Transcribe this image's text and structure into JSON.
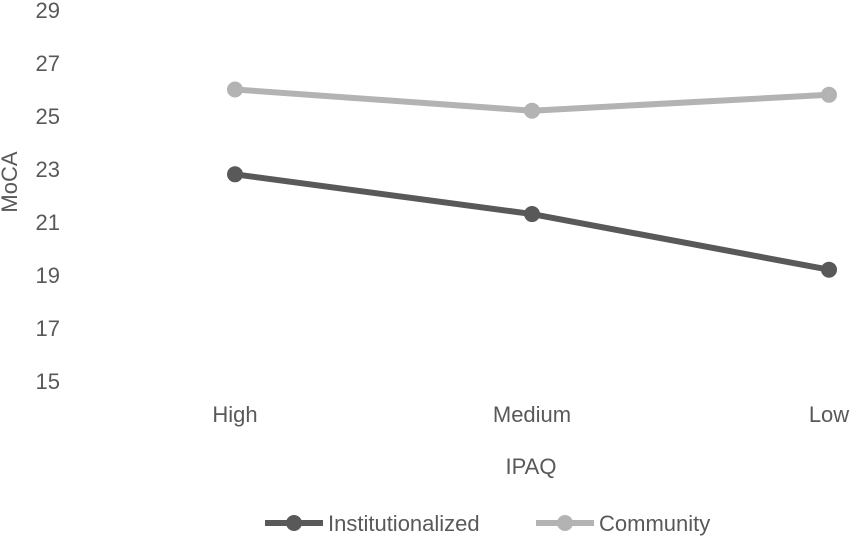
{
  "chart_data": {
    "type": "line",
    "categories": [
      "High",
      "Medium",
      "Low"
    ],
    "series": [
      {
        "name": "Institutionalized",
        "values": [
          22.8,
          21.3,
          19.2
        ],
        "color": "#595959"
      },
      {
        "name": "Community",
        "values": [
          26.0,
          25.2,
          25.8
        ],
        "color": "#b3b3b3"
      }
    ],
    "title": "",
    "xlabel": "IPAQ",
    "ylabel": "MoCA",
    "ylim": [
      15,
      29
    ],
    "yticks": [
      "15",
      "17",
      "19",
      "21",
      "23",
      "25",
      "27",
      "29"
    ],
    "grid": false,
    "legend_position": "bottom"
  }
}
